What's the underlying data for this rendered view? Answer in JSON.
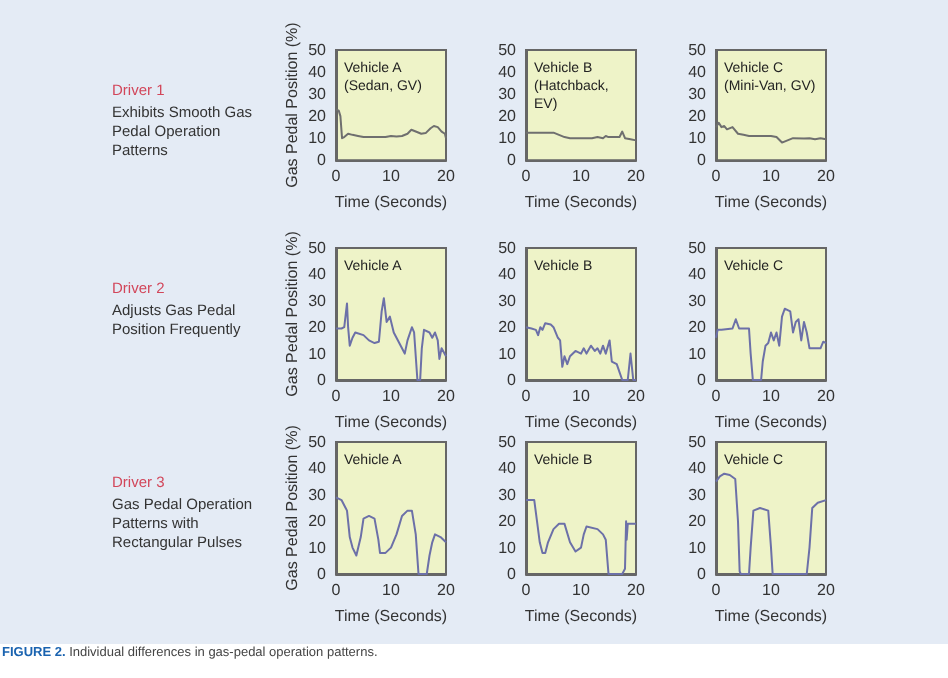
{
  "chart_data": [
    {
      "type": "line",
      "title": "Vehicle A (Sedan, GV)",
      "xlabel": "Time (Seconds)",
      "ylabel": "Gas Pedal Position (%)",
      "annotations": [
        "Driver 1",
        "Exhibits Smooth Gas Pedal Operation Patterns"
      ],
      "xlim": [
        0,
        20
      ],
      "xticks": [
        0,
        10,
        20
      ],
      "ylim": [
        0,
        50
      ],
      "yticks": [
        0,
        10,
        20,
        30,
        40,
        50
      ],
      "marker": "none",
      "series": [
        {
          "color": "#6f6f6f",
          "x": [
            0,
            0.5,
            0.8,
            1.1,
            1.5,
            2.2,
            3,
            4,
            5,
            7,
            9,
            10,
            11,
            12,
            13,
            13.7,
            14.5,
            15.5,
            16.3,
            17.2,
            17.8,
            18.5,
            19.2,
            19.8,
            20
          ],
          "values": [
            23,
            22.5,
            20,
            10,
            10.5,
            12,
            11.5,
            11,
            10.5,
            10.5,
            10.5,
            11,
            10.8,
            11,
            12,
            13.8,
            13,
            12,
            12.3,
            14.5,
            15.5,
            15,
            13,
            12,
            10
          ]
        }
      ]
    },
    {
      "type": "line",
      "title": "Vehicle B (Hatchback, EV)",
      "xlabel": "Time (Seconds)",
      "xlim": [
        0,
        20
      ],
      "xticks": [
        0,
        10,
        20
      ],
      "ylim": [
        0,
        50
      ],
      "yticks": [
        0,
        10,
        20,
        30,
        40,
        50
      ],
      "marker": "none",
      "series": [
        {
          "color": "#6f6f6f",
          "x": [
            0,
            2,
            4,
            5,
            6,
            7,
            8,
            10,
            12,
            13,
            14,
            14.5,
            15,
            17,
            17.5,
            18,
            19,
            20
          ],
          "values": [
            12.5,
            12.5,
            12.5,
            12.5,
            11.5,
            10.5,
            10,
            10,
            10,
            10.5,
            10,
            11,
            10.5,
            10.5,
            13,
            10,
            9.5,
            9
          ]
        }
      ]
    },
    {
      "type": "line",
      "title": "Vehicle C (Mini-Van, GV)",
      "xlabel": "Time (Seconds)",
      "xlim": [
        0,
        20
      ],
      "xticks": [
        0,
        10,
        20
      ],
      "ylim": [
        0,
        50
      ],
      "yticks": [
        0,
        10,
        20,
        30,
        40,
        50
      ],
      "marker": "none",
      "series": [
        {
          "color": "#6f6f6f",
          "x": [
            0,
            0.5,
            1,
            1.5,
            2,
            3,
            4,
            5,
            6,
            8,
            10,
            11,
            12,
            13,
            14,
            16,
            17,
            18,
            19,
            20
          ],
          "values": [
            15,
            17,
            15,
            15.5,
            14,
            15,
            12,
            11.5,
            11,
            11,
            11,
            10.5,
            8,
            9,
            10,
            9.8,
            10,
            9.5,
            10,
            9.5
          ]
        }
      ]
    },
    {
      "type": "line",
      "title": "Vehicle A",
      "xlabel": "Time (Seconds)",
      "ylabel": "Gas Pedal Position (%)",
      "annotations": [
        "Driver 2",
        "Adjusts Gas Pedal Position Frequently"
      ],
      "xlim": [
        0,
        20
      ],
      "xticks": [
        0,
        10,
        20
      ],
      "ylim": [
        0,
        50
      ],
      "yticks": [
        0,
        10,
        20,
        30,
        40,
        50
      ],
      "marker": "none",
      "series": [
        {
          "color": "#6c70a8",
          "x": [
            0,
            1,
            1.5,
            2,
            2.2,
            2.5,
            3,
            3.5,
            5,
            6,
            7,
            7.8,
            8.3,
            8.7,
            9.2,
            9.8,
            10.5,
            11.5,
            12,
            12.5,
            13,
            13.8,
            14.2,
            14.8,
            15.3,
            15.6,
            16,
            17,
            17.5,
            18,
            18.5,
            18.8,
            19.2,
            20
          ],
          "values": [
            19.5,
            19.5,
            20,
            29,
            20,
            13,
            16,
            18,
            17,
            15,
            14,
            14.5,
            26,
            31,
            22,
            24,
            18,
            14,
            12,
            10,
            15,
            20,
            18,
            0,
            0,
            12,
            19,
            18,
            16,
            18,
            15,
            8,
            12,
            9
          ]
        }
      ]
    },
    {
      "type": "line",
      "title": "Vehicle B",
      "xlabel": "Time (Seconds)",
      "xlim": [
        0,
        20
      ],
      "xticks": [
        0,
        10,
        20
      ],
      "ylim": [
        0,
        50
      ],
      "yticks": [
        0,
        10,
        20,
        30,
        40,
        50
      ],
      "marker": "none",
      "series": [
        {
          "color": "#6c70a8",
          "x": [
            0,
            1,
            1.8,
            2.2,
            2.6,
            3,
            3.5,
            4.5,
            5,
            5.8,
            6.2,
            6.6,
            7,
            7.5,
            8,
            9,
            10,
            10.5,
            11,
            11.8,
            12.5,
            13,
            13.5,
            14,
            14.5,
            15.2,
            15.6,
            16.5,
            17,
            17.5,
            18.5,
            19,
            19.5,
            20
          ],
          "values": [
            20,
            19.5,
            19,
            17,
            20,
            19,
            21.5,
            21,
            20,
            16,
            15,
            5,
            9,
            6,
            9,
            11,
            10,
            12,
            10,
            13,
            11,
            12,
            10,
            13,
            10,
            15,
            7,
            6,
            3,
            0,
            0,
            10,
            0,
            0
          ]
        }
      ]
    },
    {
      "type": "line",
      "title": "Vehicle C",
      "xlabel": "Time (Seconds)",
      "xlim": [
        0,
        20
      ],
      "xticks": [
        0,
        10,
        20
      ],
      "ylim": [
        0,
        50
      ],
      "yticks": [
        0,
        10,
        20,
        30,
        40,
        50
      ],
      "marker": "none",
      "series": [
        {
          "color": "#6c70a8",
          "x": [
            0,
            0.3,
            1,
            3,
            3.6,
            4.2,
            6,
            6.3,
            6.7,
            8.2,
            8.5,
            9,
            9.5,
            10,
            10.5,
            11,
            11.5,
            12,
            12.5,
            13.5,
            14,
            14.5,
            15,
            15.5,
            16,
            16.5,
            17,
            19,
            19.5,
            20
          ],
          "values": [
            16,
            19,
            19,
            19.5,
            23,
            19.5,
            19.5,
            10,
            0,
            0,
            7,
            13,
            14,
            18,
            15,
            18,
            13,
            24,
            27,
            26,
            18,
            22,
            23,
            15,
            22,
            18,
            12,
            12,
            14.5,
            14
          ]
        }
      ]
    },
    {
      "type": "line",
      "title": "Vehicle A",
      "xlabel": "Time (Seconds)",
      "ylabel": "Gas Pedal Position (%)",
      "annotations": [
        "Driver 3",
        "Gas Pedal Operation Patterns with Rectangular Pulses",
        "FIGURE 2. Individual differences in gas-pedal operation patterns."
      ],
      "xlim": [
        0,
        20
      ],
      "xticks": [
        0,
        10,
        20
      ],
      "ylim": [
        0,
        50
      ],
      "yticks": [
        0,
        10,
        20,
        30,
        40,
        50
      ],
      "marker": "none",
      "series": [
        {
          "color": "#6c70a8",
          "x": [
            0,
            1,
            2,
            2.5,
            3,
            3.7,
            4.5,
            5,
            6,
            7,
            7.7,
            8,
            9,
            10,
            11,
            12,
            13,
            13.8,
            14.5,
            15,
            16.5,
            17,
            17.5,
            18,
            19,
            20
          ],
          "values": [
            29,
            28,
            24,
            14,
            10,
            7,
            14,
            21,
            22,
            21,
            13,
            8,
            8,
            10,
            15,
            22,
            24,
            24,
            15,
            0,
            0,
            7,
            12,
            15,
            14,
            12
          ]
        }
      ]
    },
    {
      "type": "line",
      "title": "Vehicle B",
      "xlabel": "Time (Seconds)",
      "xlim": [
        0,
        20
      ],
      "xticks": [
        0,
        10,
        20
      ],
      "ylim": [
        0,
        50
      ],
      "yticks": [
        0,
        10,
        20,
        30,
        40,
        50
      ],
      "marker": "none",
      "series": [
        {
          "color": "#6c70a8",
          "x": [
            0,
            1.5,
            2,
            2.5,
            3,
            3.5,
            4,
            5,
            6,
            7,
            8,
            9,
            10,
            10.5,
            11,
            13,
            14,
            14.5,
            15,
            17.5,
            18,
            18.2,
            18.3,
            18.5,
            20
          ],
          "values": [
            28,
            28,
            20,
            12,
            8,
            8,
            12,
            17,
            19,
            19,
            12,
            8.5,
            10,
            15,
            18,
            17,
            15,
            13,
            0,
            0,
            2,
            20,
            13,
            19,
            19
          ]
        }
      ]
    },
    {
      "type": "line",
      "title": "Vehicle C",
      "xlabel": "Time (Seconds)",
      "xlim": [
        0,
        20
      ],
      "xticks": [
        0,
        10,
        20
      ],
      "ylim": [
        0,
        50
      ],
      "yticks": [
        0,
        10,
        20,
        30,
        40,
        50
      ],
      "marker": "none",
      "series": [
        {
          "color": "#6c70a8",
          "x": [
            0,
            0.7,
            1.5,
            2.5,
            3.5,
            4,
            4.3,
            4.5,
            6,
            6.3,
            6.8,
            8,
            9.5,
            10,
            10.3,
            16.5,
            17,
            17.5,
            18.5,
            20
          ],
          "values": [
            35,
            37,
            38,
            37.5,
            36,
            20,
            1,
            0,
            0,
            10,
            24,
            25,
            24,
            10,
            0,
            0,
            10,
            25,
            27,
            28
          ]
        }
      ]
    }
  ]
}
